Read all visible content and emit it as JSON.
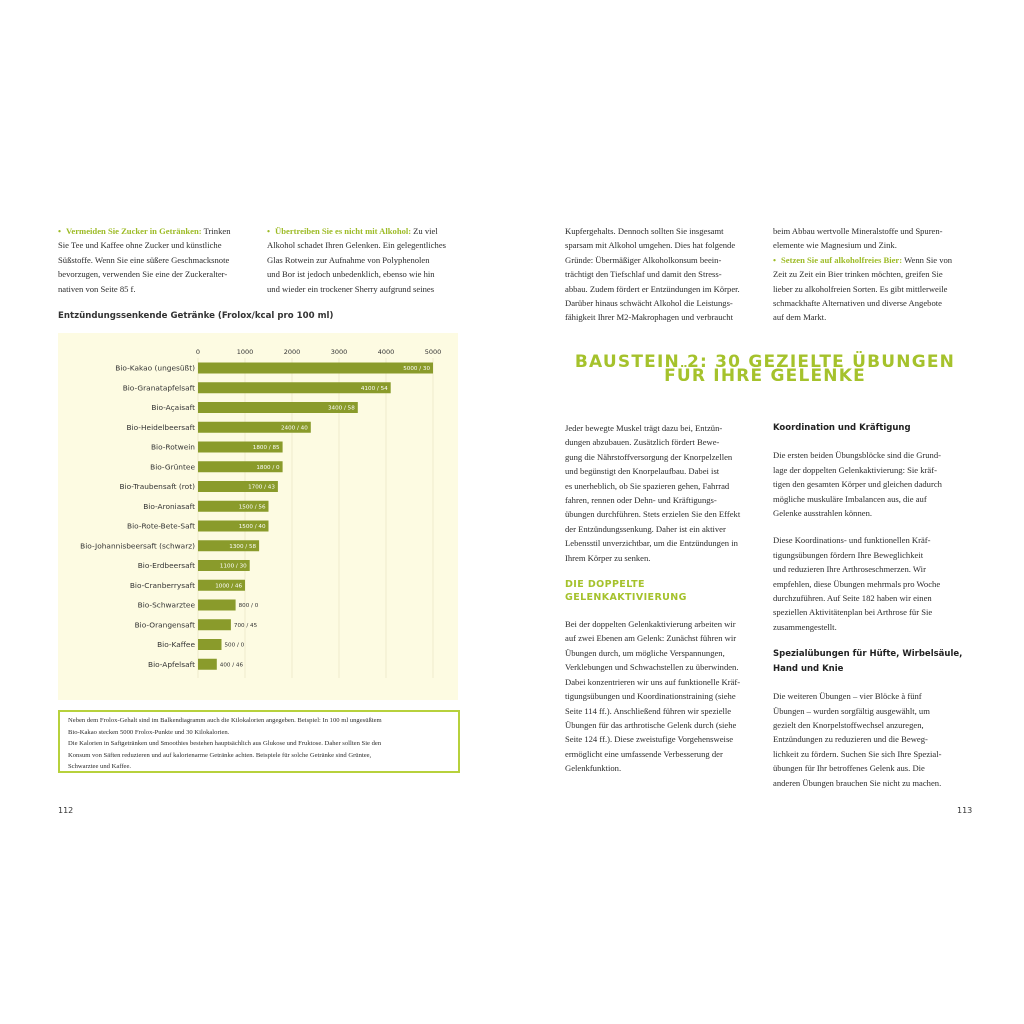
{
  "left_page": {
    "col1": [
      {
        "lines": [
          {
            "lead": "Vermeiden Sie Zucker in Getränken:",
            "text": "Trinken"
          },
          "Sie Tee und Kaffee ohne Zucker und künstliche",
          "Süßstoffe. Wenn Sie eine süßere Geschmacksnote",
          "bevorzugen, verwenden Sie eine der Zuckeralter-",
          "nativen von Seite 85 f."
        ]
      }
    ],
    "col2": [
      {
        "lines": [
          {
            "lead": "Übertreiben Sie es nicht mit Alkohol:",
            "text": "Zu viel"
          },
          "Alkohol schadet Ihren Gelenken. Ein gelegentliches",
          "Glas Rotwein zur Aufnahme von Polyphenolen",
          "und Bor ist jedoch unbedenklich, ebenso wie hin",
          "und wieder ein trockener Sherry aufgrund seines"
        ]
      }
    ],
    "note": [
      "Neben dem Frolox-Gehalt sind im Balkendiagramm auch die Kilokalorien angegeben. Beispiel: In 100 ml ungesüßtem",
      "Bio-Kakao stecken 5000 Frolox-Punkte und 30 Kilokalorien.",
      "Die Kalorien in Saftgetränken und Smoothies bestehen hauptsächlich aus Glukose und Fruktose. Daher sollten Sie den",
      "Konsum von Säften reduzieren und auf kalorienarme Getränke achten. Beispiele für solche Getränke sind Grüntee,",
      "Schwarztee und Kaffee."
    ],
    "page_number": "112"
  },
  "chart_data": {
    "type": "bar",
    "orientation": "horizontal",
    "title": "Entzündungssenkende Getränke (Frolox/kcal pro 100 ml)",
    "categories": [
      "Bio-Kakao (ungesüßt)",
      "Bio-Granatapfelsaft",
      "Bio-Açaisaft",
      "Bio-Heidelbeersaft",
      "Bio-Rotwein",
      "Bio-Grüntee",
      "Bio-Traubensaft (rot)",
      "Bio-Aroniasaft",
      "Bio-Rote-Bete-Saft",
      "Bio-Johannisbeersaft (schwarz)",
      "Bio-Erdbeersaft",
      "Bio-Cranberrysaft",
      "Bio-Schwarztee",
      "Bio-Orangensaft",
      "Bio-Kaffee",
      "Bio-Apfelsaft"
    ],
    "values": [
      5000,
      4100,
      3400,
      2400,
      1800,
      1800,
      1700,
      1500,
      1500,
      1300,
      1100,
      1000,
      800,
      700,
      500,
      400
    ],
    "value_labels": [
      "5000 / 30",
      "4100 / 54",
      "3400 / 58",
      "2400 / 40",
      "1800 / 85",
      "1800 / 0",
      "1700 / 43",
      "1500 / 56",
      "1500 / 40",
      "1300 / 58",
      "1100 / 30",
      "1000 / 46",
      "800 / 0",
      "700 / 45",
      "500 / 0",
      "400 / 46"
    ],
    "color": "#8a9b2b",
    "xlim": [
      0,
      5000
    ],
    "xticks": [
      0,
      1000,
      2000,
      3000,
      4000,
      5000
    ],
    "grid": true
  },
  "right_page": {
    "top_col1": [
      {
        "lines": [
          "Kupfergehalts. Dennoch sollten Sie insgesamt",
          "sparsam mit Alkohol umgehen. Dies hat folgende",
          "Gründe: Übermäßiger Alkoholkonsum beein-",
          "trächtigt den Tiefschlaf und damit den Stress-",
          "abbau. Zudem fördert er Entzündungen im Körper.",
          "Darüber hinaus schwächt Alkohol die Leistungs-",
          "fähigkeit Ihrer M2-Makrophagen und verbraucht"
        ]
      }
    ],
    "top_col2": [
      {
        "lines": [
          "beim Abbau wertvolle Mineralstoffe und Spuren-",
          "elemente wie Magnesium und Zink.",
          {
            "lead": "Setzen Sie auf alkoholfreies Bier:",
            "text": "Wenn Sie von"
          },
          "Zeit zu Zeit ein Bier trinken möchten, greifen Sie",
          "lieber zu alkoholfreien Sorten. Es gibt mittlerweile",
          "schmackhafte Alternativen und diverse Angebote",
          "auf dem Markt."
        ]
      }
    ],
    "section_title": [
      "BAUSTEIN 2: 30 GEZIELTE ÜBUNGEN",
      "FÜR IHRE GELENKE"
    ],
    "col1": [
      {
        "lines": [
          "Jeder bewegte Muskel trägt dazu bei, Entzün-",
          "dungen abzubauen. Zusätzlich fördert Bewe-",
          "gung die Nährstoffversorgung der Knorpelzellen",
          "und begünstigt den Knorpelaufbau. Dabei ist",
          "es unerheblich, ob Sie spazieren gehen, Fahrrad",
          "fahren, rennen oder Dehn- und Kräftigungs-",
          "übungen durchführen. Stets erzielen Sie den Effekt",
          "der Entzündungssenkung. Daher ist ein aktiver",
          "Lebensstil unverzichtbar, um die Entzündungen in",
          "Ihrem Körper zu senken."
        ]
      },
      {
        "heading": [
          "DIE DOPPELTE",
          "GELENKAKTIVIERUNG"
        ]
      },
      {
        "lines": [
          "Bei der doppelten Gelenkaktivierung arbeiten wir",
          "auf zwei Ebenen am Gelenk: Zunächst führen wir",
          "Übungen durch, um mögliche Verspannungen,",
          "Verklebungen und Schwachstellen zu überwinden.",
          "Dabei konzentrieren wir uns auf funktionelle Kräf-",
          "tigungsübungen und Koordinationstraining (siehe",
          "Seite 114 ff.). Anschließend führen wir spezielle",
          "Übungen für das arthrotische Gelenk durch (siehe",
          "Seite 124 ff.). Diese zweistufige Vorgehensweise",
          "ermöglicht eine umfassende Verbesserung der",
          "Gelenkfunktion."
        ]
      }
    ],
    "col2": [
      {
        "subheading": [
          "Koordination und Kräftigung"
        ]
      },
      {
        "lines": [
          "Die ersten beiden Übungsblöcke sind die Grund-",
          "lage der doppelten Gelenkaktivierung: Sie kräf-",
          "tigen den gesamten Körper und gleichen dadurch",
          "mögliche muskuläre Imbalancen aus, die auf",
          "Gelenke ausstrahlen können."
        ]
      },
      {
        "lines": [
          "Diese Koordinations- und funktionellen Kräf-",
          "tigungsübungen fördern Ihre Beweglichkeit",
          "und reduzieren Ihre Arthroseschmerzen. Wir",
          "empfehlen, diese Übungen mehrmals pro Woche",
          "durchzuführen. Auf Seite 182 haben wir einen",
          "speziellen Aktivitätenplan bei Arthrose für Sie",
          "zusammengestellt."
        ]
      },
      {
        "subheading": [
          "Spezialübungen für Hüfte, Wirbelsäule,",
          "Hand und Knie"
        ]
      },
      {
        "lines": [
          "Die weiteren Übungen – vier Blöcke à fünf",
          "Übungen – wurden sorgfältig ausgewählt, um",
          "gezielt den Knorpelstoffwechsel anzuregen,",
          "Entzündungen zu reduzieren und die Beweg-",
          "lichkeit zu fördern. Suchen Sie sich Ihre Spezial-",
          "übungen für Ihr betroffenes Gelenk aus. Die",
          "anderen Übungen brauchen Sie nicht zu machen."
        ]
      }
    ],
    "page_number": "113"
  }
}
